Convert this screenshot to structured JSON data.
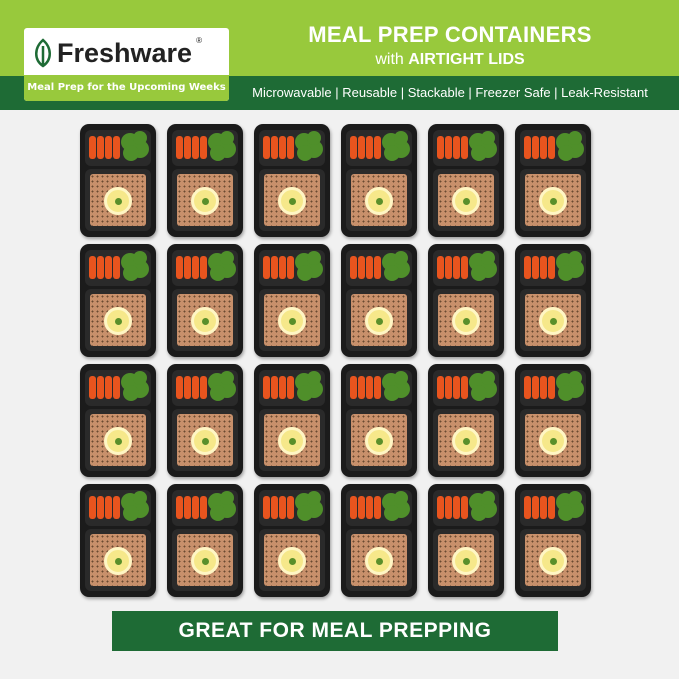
{
  "brand": {
    "name": "Freshware",
    "registered": "®",
    "tagline": "Meal Prep for the Upcoming Weeks"
  },
  "header": {
    "title": "MEAL PREP CONTAINERS",
    "subtitle_prefix": "with",
    "subtitle_bold": "AIRTIGHT LIDS"
  },
  "features": "Microwavable | Reusable | Stackable | Freezer Safe | Leak-Resistant",
  "grid": {
    "rows": 4,
    "columns": 6
  },
  "banner": "GREAT FOR MEAL PREPPING",
  "colors": {
    "light_green": "#98c93c",
    "dark_green": "#1e6b35",
    "background": "#f1f1f1"
  }
}
